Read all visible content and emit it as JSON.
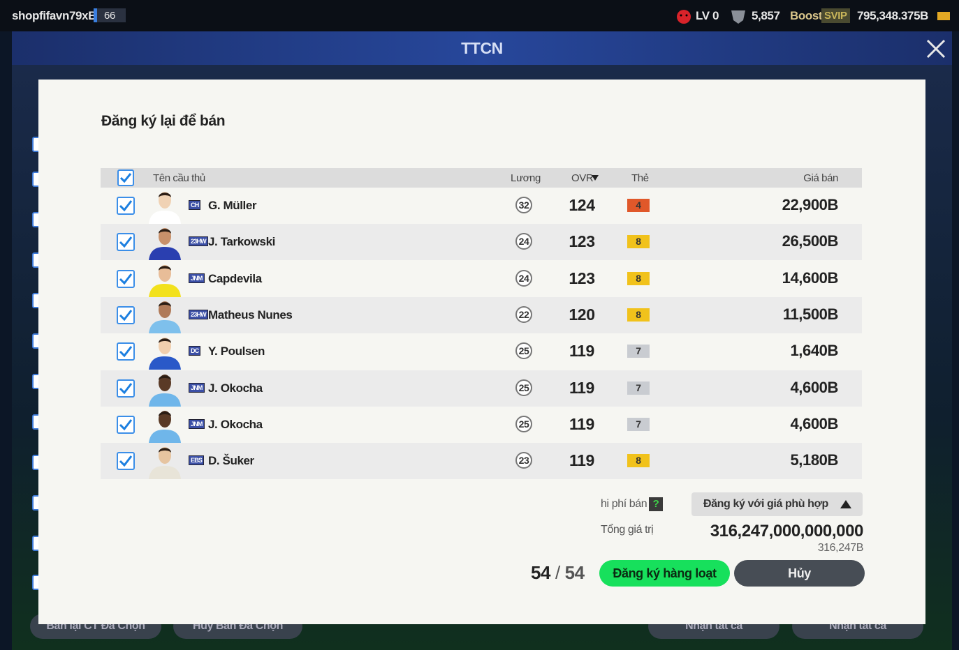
{
  "top_bar": {
    "username": "shopfifavn79xB",
    "level": "66",
    "lv": "LV 0",
    "points": "5,857",
    "boost": "Boost",
    "svip": "SVIP",
    "balance": "795,348.375B"
  },
  "header": {
    "title": "TTCN"
  },
  "background": {
    "buttons": [
      "Bán lại CT Đã Chọn",
      "Hủy Bán Đã Chọn",
      "Nhận tất cả",
      "Nhận tất cả"
    ]
  },
  "dialog": {
    "title": "Đăng ký lại để bán",
    "columns": {
      "name": "Tên cầu thủ",
      "salary": "Lương",
      "ovr": "OVR",
      "card": "Thẻ",
      "price": "Giá bán"
    },
    "rows": [
      {
        "season": "CH",
        "name": "G. Müller",
        "salary": "32",
        "ovr": "124",
        "level": "4",
        "level_color": "#e0582a",
        "price": "22,900B"
      },
      {
        "season": "23HW",
        "name": "J. Tarkowski",
        "salary": "24",
        "ovr": "123",
        "level": "8",
        "level_color": "#f1c21b",
        "price": "26,500B"
      },
      {
        "season": "JNM",
        "name": "Capdevila",
        "salary": "24",
        "ovr": "123",
        "level": "8",
        "level_color": "#f1c21b",
        "price": "14,600B"
      },
      {
        "season": "23HW",
        "name": "Matheus Nunes",
        "salary": "22",
        "ovr": "120",
        "level": "8",
        "level_color": "#f1c21b",
        "price": "11,500B"
      },
      {
        "season": "DC",
        "name": "Y. Poulsen",
        "salary": "25",
        "ovr": "119",
        "level": "7",
        "level_color": "#c9ccd1",
        "price": "1,640B"
      },
      {
        "season": "JNM",
        "name": "J. Okocha",
        "salary": "25",
        "ovr": "119",
        "level": "7",
        "level_color": "#c9ccd1",
        "price": "4,600B"
      },
      {
        "season": "JNM",
        "name": "J. Okocha",
        "salary": "25",
        "ovr": "119",
        "level": "7",
        "level_color": "#c9ccd1",
        "price": "4,600B"
      },
      {
        "season": "EBS",
        "name": "D. Šuker",
        "salary": "23",
        "ovr": "119",
        "level": "8",
        "level_color": "#f1c21b",
        "price": "5,180B"
      }
    ],
    "fee_label": "hi phí bán",
    "fee_help": "?",
    "dropdown": "Đăng ký với giá phù hợp",
    "total_label": "Tổng giá trị",
    "total": "316,247,000,000,000",
    "total_short": "316,247B",
    "count": "54",
    "count_separator": "/",
    "count_total": "54",
    "register_button": "Đăng ký hàng loạt",
    "cancel_button": "Hủy"
  }
}
